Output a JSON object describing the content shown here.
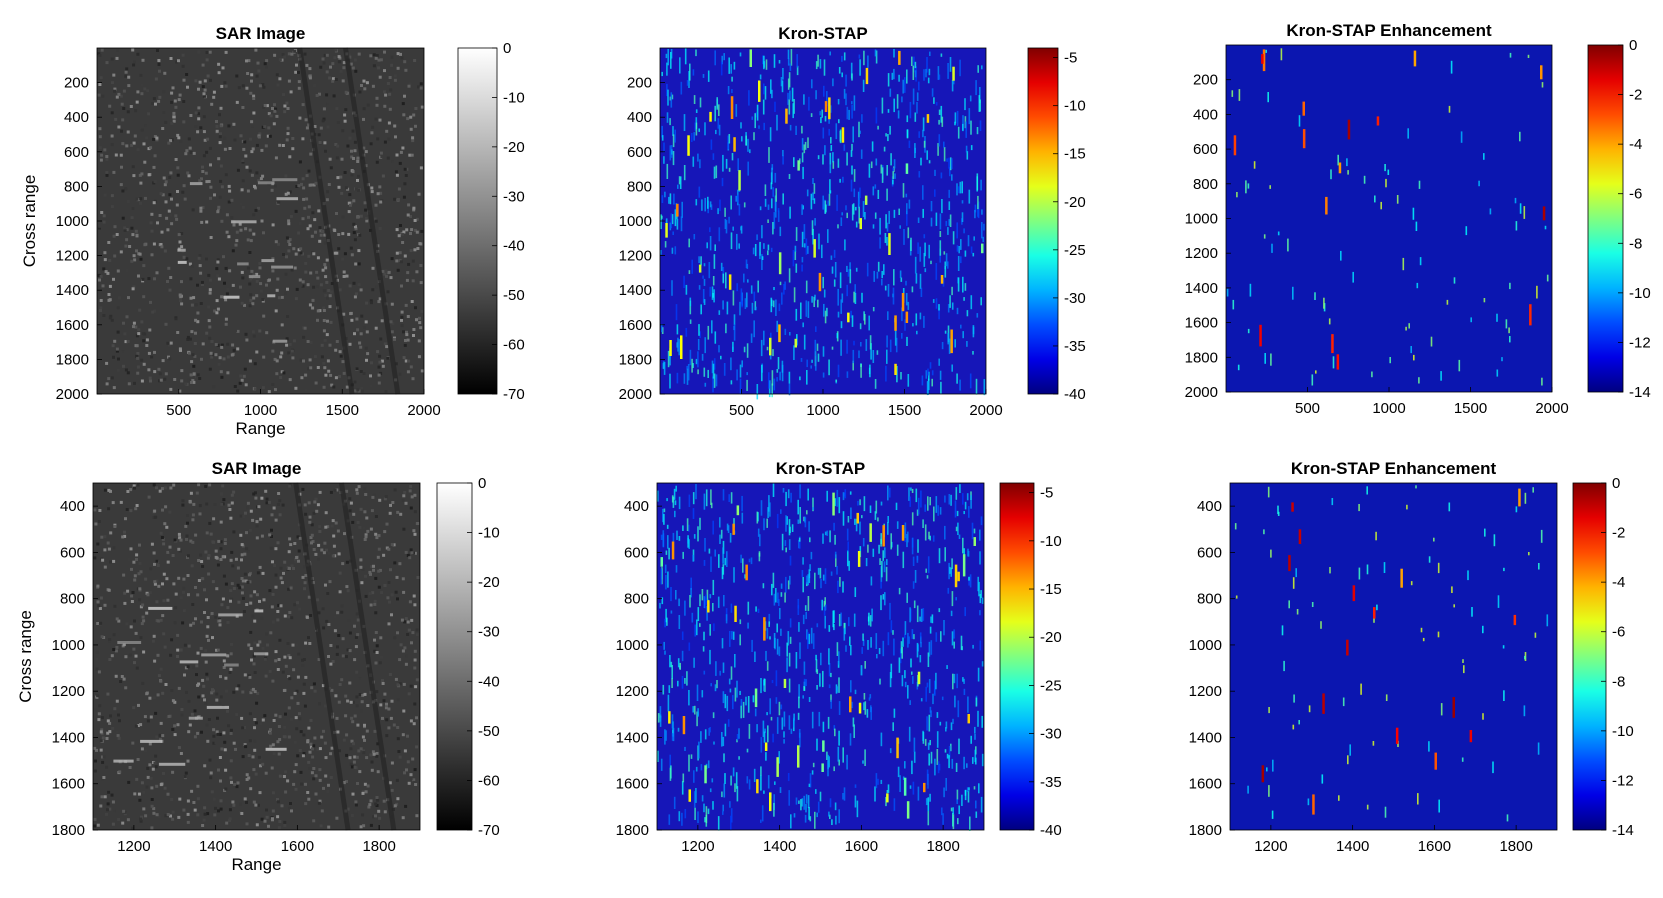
{
  "figure": {
    "colors": {
      "background": "#ffffff",
      "axis": "#000000",
      "jet_low": "#00008f",
      "jet_high": "#800000"
    }
  },
  "chart_data": [
    {
      "type": "heatmap",
      "title": "SAR Image",
      "colormap": "gray",
      "xlabel": "Range",
      "ylabel": "Cross range",
      "xlim": [
        0,
        2000
      ],
      "ylim": [
        0,
        2000
      ],
      "y_reversed": true,
      "xticks": [
        500,
        1000,
        1500,
        2000
      ],
      "yticks": [
        200,
        400,
        600,
        800,
        1000,
        1200,
        1400,
        1600,
        1800,
        2000
      ],
      "colorbar": {
        "range": [
          -70,
          0
        ],
        "ticks": [
          0,
          -10,
          -20,
          -30,
          -40,
          -50,
          -60,
          -70
        ]
      }
    },
    {
      "type": "heatmap",
      "title": "Kron-STAP",
      "colormap": "jet",
      "xlabel": "",
      "ylabel": "",
      "xlim": [
        0,
        2000
      ],
      "ylim": [
        0,
        2000
      ],
      "y_reversed": true,
      "xticks": [
        500,
        1000,
        1500,
        2000
      ],
      "yticks": [
        200,
        400,
        600,
        800,
        1000,
        1200,
        1400,
        1600,
        1800,
        2000
      ],
      "colorbar": {
        "range": [
          -40,
          -4
        ],
        "ticks": [
          -5,
          -10,
          -15,
          -20,
          -25,
          -30,
          -35,
          -40
        ]
      }
    },
    {
      "type": "heatmap",
      "title": "Kron-STAP Enhancement",
      "colormap": "jet",
      "xlabel": "",
      "ylabel": "",
      "xlim": [
        0,
        2000
      ],
      "ylim": [
        0,
        2000
      ],
      "y_reversed": true,
      "xticks": [
        500,
        1000,
        1500,
        2000
      ],
      "yticks": [
        200,
        400,
        600,
        800,
        1000,
        1200,
        1400,
        1600,
        1800,
        2000
      ],
      "colorbar": {
        "range": [
          -14,
          0
        ],
        "ticks": [
          0,
          -2,
          -4,
          -6,
          -8,
          -10,
          -12,
          -14
        ]
      }
    },
    {
      "type": "heatmap",
      "title": "SAR Image",
      "colormap": "gray",
      "xlabel": "Range",
      "ylabel": "Cross range",
      "xlim": [
        1100,
        1900
      ],
      "ylim": [
        300,
        1800
      ],
      "y_reversed": true,
      "xticks": [
        1200,
        1400,
        1600,
        1800
      ],
      "yticks": [
        400,
        600,
        800,
        1000,
        1200,
        1400,
        1600,
        1800
      ],
      "colorbar": {
        "range": [
          -70,
          0
        ],
        "ticks": [
          0,
          -10,
          -20,
          -30,
          -40,
          -50,
          -60,
          -70
        ]
      }
    },
    {
      "type": "heatmap",
      "title": "Kron-STAP",
      "colormap": "jet",
      "xlabel": "",
      "ylabel": "",
      "xlim": [
        1100,
        1900
      ],
      "ylim": [
        300,
        1800
      ],
      "y_reversed": true,
      "xticks": [
        1200,
        1400,
        1600,
        1800
      ],
      "yticks": [
        400,
        600,
        800,
        1000,
        1200,
        1400,
        1600,
        1800
      ],
      "colorbar": {
        "range": [
          -40,
          -4
        ],
        "ticks": [
          -5,
          -10,
          -15,
          -20,
          -25,
          -30,
          -35,
          -40
        ]
      }
    },
    {
      "type": "heatmap",
      "title": "Kron-STAP Enhancement",
      "colormap": "jet",
      "xlabel": "",
      "ylabel": "",
      "xlim": [
        1100,
        1900
      ],
      "ylim": [
        300,
        1800
      ],
      "y_reversed": true,
      "xticks": [
        1200,
        1400,
        1600,
        1800
      ],
      "yticks": [
        400,
        600,
        800,
        1000,
        1200,
        1400,
        1600,
        1800
      ],
      "colorbar": {
        "range": [
          -14,
          0
        ],
        "ticks": [
          0,
          -2,
          -4,
          -6,
          -8,
          -10,
          -12,
          -14
        ]
      }
    }
  ]
}
